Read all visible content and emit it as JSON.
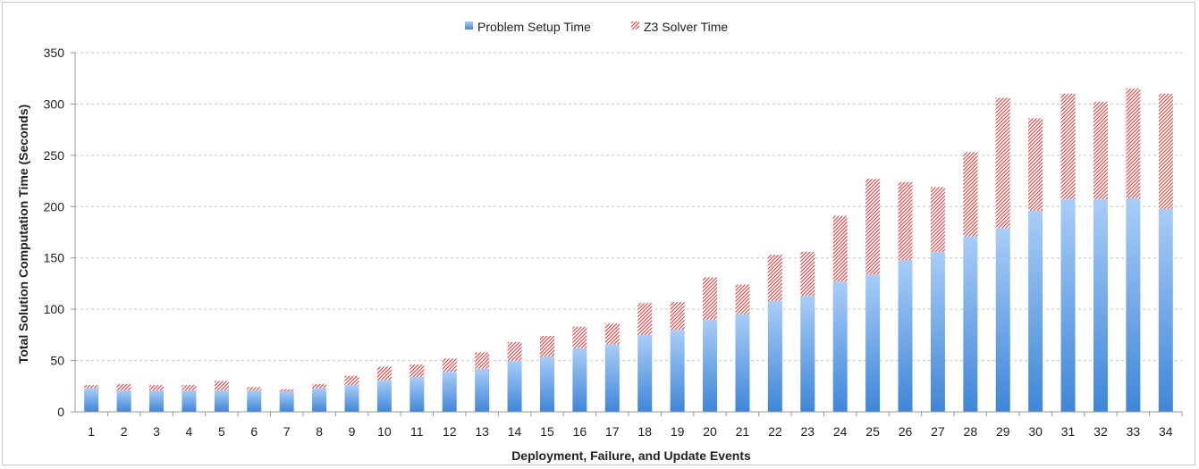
{
  "chart_data": {
    "type": "bar",
    "stacked": true,
    "xlabel": "Deployment, Failure, and Update Events",
    "ylabel": "Total Solution Computation Time (Seconds)",
    "ylim": [
      0,
      350
    ],
    "yticks": [
      0,
      50,
      100,
      150,
      200,
      250,
      300,
      350
    ],
    "grid": true,
    "legend_position": "top-center",
    "categories": [
      "1",
      "2",
      "3",
      "4",
      "5",
      "6",
      "7",
      "8",
      "9",
      "10",
      "11",
      "12",
      "13",
      "14",
      "15",
      "16",
      "17",
      "18",
      "19",
      "20",
      "21",
      "22",
      "23",
      "24",
      "25",
      "26",
      "27",
      "28",
      "29",
      "30",
      "31",
      "32",
      "33",
      "34"
    ],
    "series": [
      {
        "name": "Problem Setup Time",
        "color": "#4a8fdd",
        "pattern": "solid-gradient",
        "values": [
          23,
          21,
          21,
          21,
          21,
          21,
          20,
          23,
          26,
          31,
          34,
          39,
          42,
          50,
          54,
          62,
          66,
          75,
          80,
          90,
          95,
          108,
          113,
          127,
          134,
          148,
          156,
          171,
          179,
          196,
          207,
          207,
          208,
          198
        ]
      },
      {
        "name": "Z3 Solver Time",
        "color": "#d94040",
        "pattern": "hatched",
        "values": [
          3,
          6,
          5,
          5,
          9,
          3,
          2,
          4,
          9,
          13,
          12,
          13,
          16,
          18,
          20,
          21,
          20,
          31,
          27,
          41,
          29,
          45,
          43,
          64,
          93,
          76,
          63,
          82,
          127,
          90,
          103,
          95,
          107,
          112
        ]
      }
    ]
  }
}
